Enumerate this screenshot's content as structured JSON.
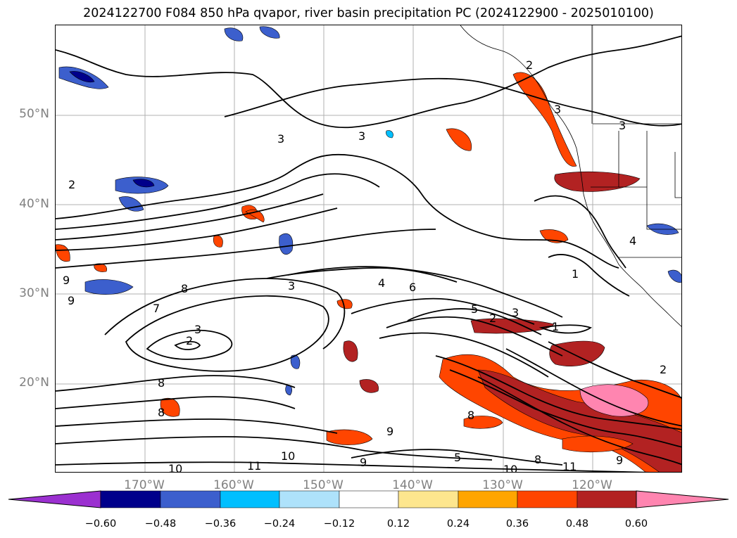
{
  "title": "2024122700 F084 850 hPa qvapor, river basin precipitation PC (2024122900 - 2025010100)",
  "lat_labels": [
    "50°N",
    "40°N",
    "30°N",
    "20°N"
  ],
  "lon_labels": [
    "170°W",
    "160°W",
    "150°W",
    "140°W",
    "130°W",
    "120°W"
  ],
  "colorbar": {
    "colors": [
      "#9b30d0",
      "#00008b",
      "#3c5fcd",
      "#00bfff",
      "#aee2fb",
      "#ffffff",
      "#fde68e",
      "#ffa500",
      "#ff4500",
      "#b22222",
      "#ff85b0"
    ],
    "ticks": [
      "−0.60",
      "−0.48",
      "−0.36",
      "−0.24",
      "−0.12",
      "0.12",
      "0.24",
      "0.36",
      "0.48",
      "0.60"
    ]
  },
  "contour_labels": [
    "2",
    "9",
    "9",
    "8",
    "7",
    "3",
    "2",
    "8",
    "3",
    "3",
    "3",
    "4",
    "6",
    "5",
    "2",
    "3",
    "1",
    "2",
    "3",
    "2",
    "3",
    "4",
    "1",
    "10",
    "11",
    "10",
    "9",
    "9",
    "5",
    "10",
    "8",
    "11",
    "9",
    "8",
    "8"
  ]
}
